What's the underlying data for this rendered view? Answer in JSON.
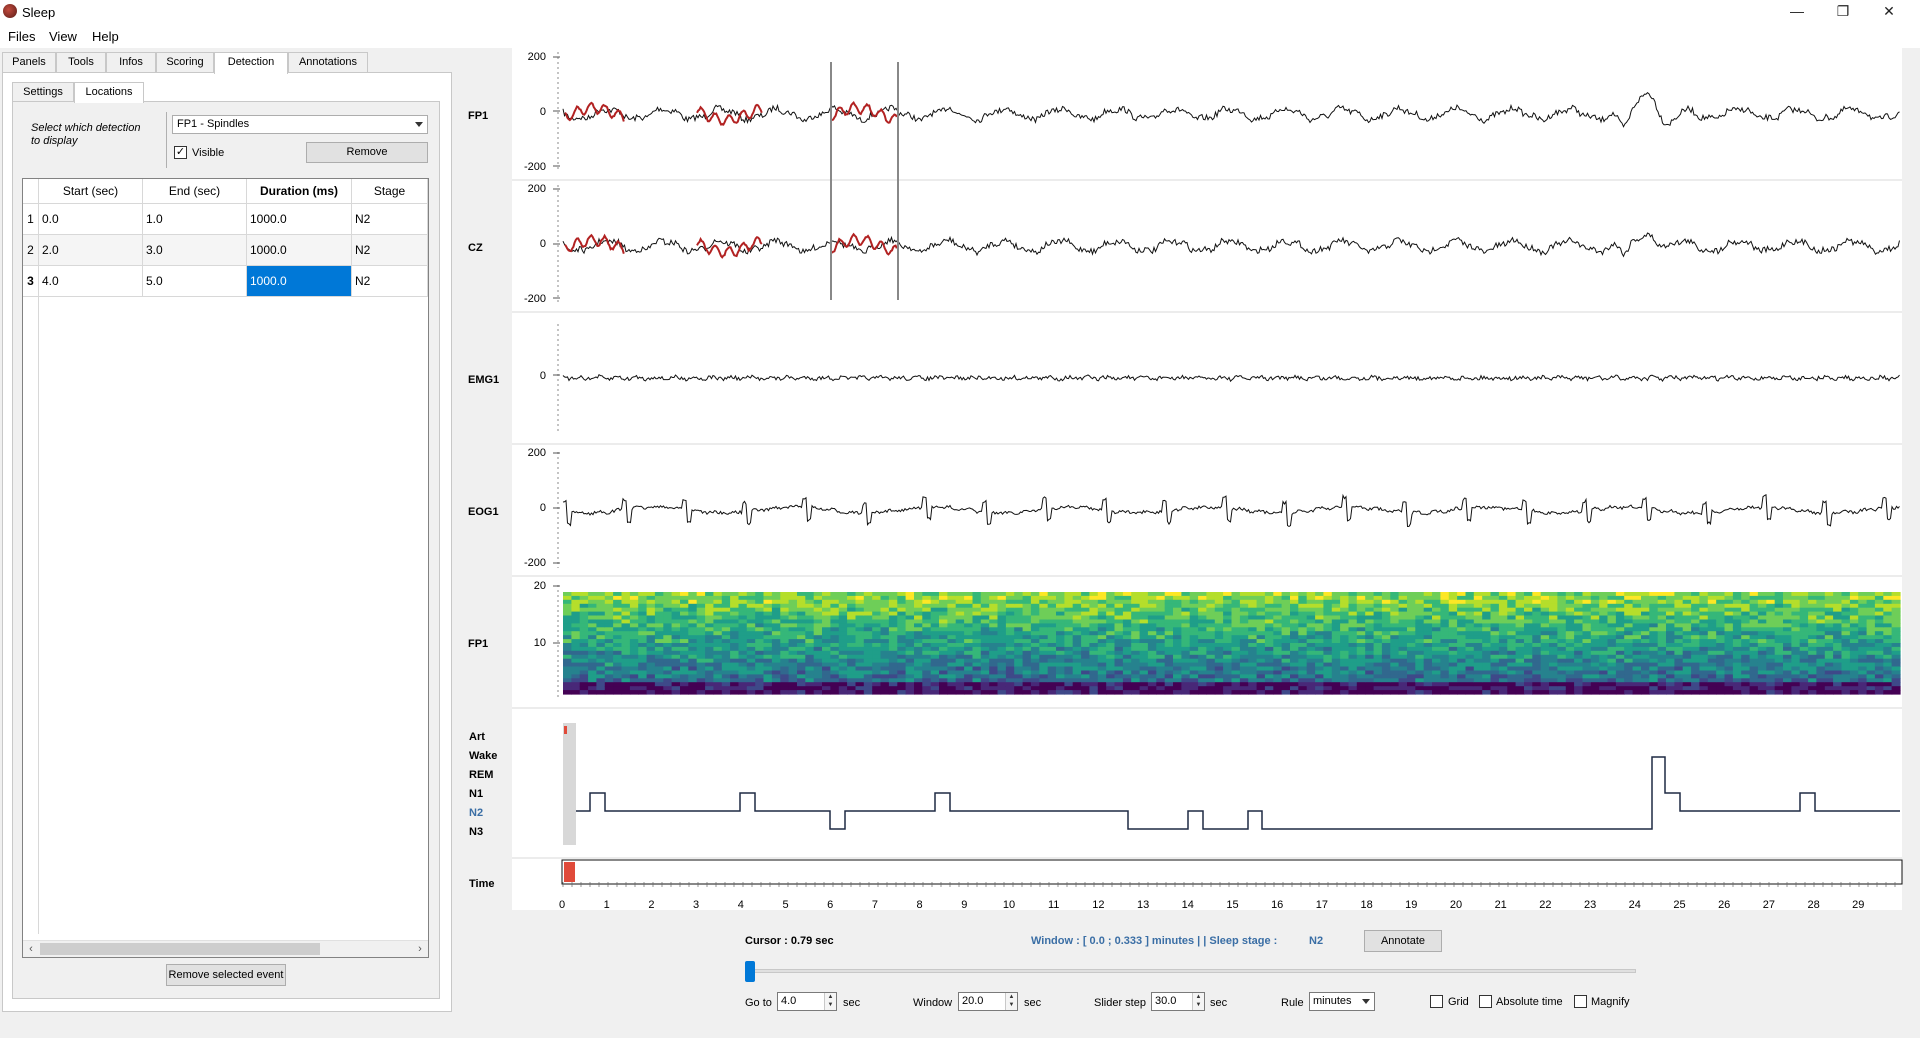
{
  "window": {
    "title": "Sleep",
    "minimize": "—",
    "maximize": "❐",
    "close": "✕"
  },
  "menu": [
    "Files",
    "View",
    "Help"
  ],
  "tabs": [
    "Panels",
    "Tools",
    "Infos",
    "Scoring",
    "Detection",
    "Annotations"
  ],
  "active_tab": "Detection",
  "subtabs": [
    "Settings",
    "Locations"
  ],
  "active_subtab": "Locations",
  "detection": {
    "select_label": "Select which detection to display",
    "selected": "FP1 - Spindles",
    "visible_label": "Visible",
    "visible_checked": true,
    "remove_label": "Remove"
  },
  "table": {
    "headers": [
      "Start (sec)",
      "End (sec)",
      "Duration (ms)",
      "Stage"
    ],
    "row_numbers": [
      "1",
      "2",
      "3"
    ],
    "rows": [
      [
        "0.0",
        "1.0",
        "1000.0",
        "N2"
      ],
      [
        "2.0",
        "3.0",
        "1000.0",
        "N2"
      ],
      [
        "4.0",
        "5.0",
        "1000.0",
        "N2"
      ]
    ],
    "selected_row": 2,
    "selected_col": 2
  },
  "remove_event_label": "Remove selected event",
  "channels": [
    {
      "label": "FP1",
      "ticks": [
        "200",
        "0",
        "-200"
      ]
    },
    {
      "label": "CZ",
      "ticks": [
        "200",
        "0",
        "-200"
      ]
    },
    {
      "label": "EMG1",
      "ticks": [
        "0"
      ]
    },
    {
      "label": "EOG1",
      "ticks": [
        "200",
        "0",
        "-200"
      ]
    }
  ],
  "spectrogram": {
    "label": "FP1",
    "ticks": [
      "20",
      "10"
    ]
  },
  "hypnogram": {
    "labels": [
      "Art",
      "Wake",
      "REM",
      "N1",
      "N2",
      "N3"
    ],
    "highlight": "N2",
    "highlight_color": "#3a6ea5"
  },
  "time_label": "Time",
  "time_ticks": [
    "0",
    "1",
    "2",
    "3",
    "4",
    "5",
    "6",
    "7",
    "8",
    "9",
    "10",
    "11",
    "12",
    "13",
    "14",
    "15",
    "16",
    "17",
    "18",
    "19",
    "20",
    "21",
    "22",
    "23",
    "24",
    "25",
    "26",
    "27",
    "28",
    "29"
  ],
  "status": {
    "cursor": "Cursor : 0.79 sec",
    "window_info": "Window : [ 0.0 ; 0.333 ] minutes | | Sleep stage :",
    "stage": "N2",
    "annotate": "Annotate"
  },
  "controls": {
    "goto_label": "Go to",
    "goto_value": "4.0",
    "goto_unit": "sec",
    "window_label": "Window",
    "window_value": "20.0",
    "window_unit": "sec",
    "slider_label": "Slider step",
    "slider_value": "30.0",
    "slider_unit": "sec",
    "rule_label": "Rule",
    "rule_value": "minutes",
    "grid_label": "Grid",
    "abs_label": "Absolute time",
    "magnify_label": "Magnify"
  },
  "colors": {
    "detection": "#b22222",
    "selection": "#0078d7",
    "accent": "#3a6ea5",
    "time_marker": "#e04a3a"
  }
}
